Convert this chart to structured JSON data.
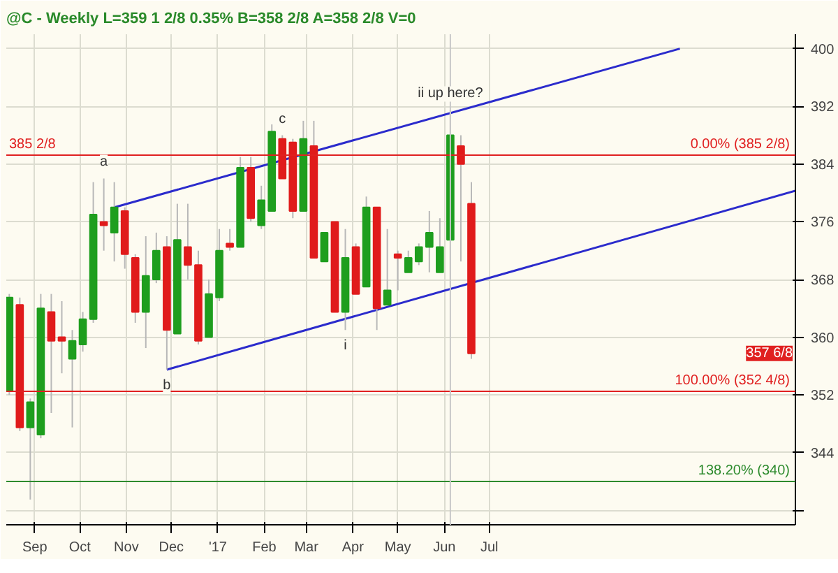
{
  "chart_data": {
    "type": "candlestick",
    "title": "@C - Weekly  L=359  1 2/8  0.35%  B=358 2/8  A=358 2/8  V=0",
    "x": [
      "2016-08-15",
      "2016-08-22",
      "2016-08-29",
      "2016-09-05",
      "2016-09-12",
      "2016-09-19",
      "2016-09-26",
      "2016-10-03",
      "2016-10-10",
      "2016-10-17",
      "2016-10-24",
      "2016-10-31",
      "2016-11-07",
      "2016-11-14",
      "2016-11-21",
      "2016-11-28",
      "2016-12-05",
      "2016-12-12",
      "2016-12-19",
      "2016-12-26",
      "2017-01-02",
      "2017-01-09",
      "2017-01-16",
      "2017-01-23",
      "2017-01-30",
      "2017-02-06",
      "2017-02-13",
      "2017-02-20",
      "2017-02-27",
      "2017-03-06",
      "2017-03-13",
      "2017-03-20",
      "2017-03-27",
      "2017-04-03",
      "2017-04-10",
      "2017-04-17",
      "2017-04-24",
      "2017-05-01",
      "2017-05-08",
      "2017-05-15",
      "2017-05-22",
      "2017-05-29",
      "2017-06-05",
      "2017-06-12",
      "2017-06-19"
    ],
    "ohlc": [
      [
        352.5,
        366,
        352,
        365.5
      ],
      [
        364.5,
        365.5,
        347,
        347.5
      ],
      [
        347.5,
        351.5,
        337.5,
        351
      ],
      [
        346.5,
        366,
        346,
        364
      ],
      [
        363.5,
        366,
        349.5,
        359.5
      ],
      [
        360,
        365,
        355,
        359.5
      ],
      [
        357,
        361,
        347.5,
        359.5
      ],
      [
        359,
        363.5,
        358,
        362.5
      ],
      [
        362.5,
        381.5,
        362,
        377
      ],
      [
        376,
        382,
        372,
        375.5
      ],
      [
        374.5,
        381.5,
        370.5,
        378
      ],
      [
        377.5,
        378,
        369.5,
        371.5
      ],
      [
        371,
        371.5,
        362,
        363.5
      ],
      [
        363.5,
        374,
        358.5,
        368.5
      ],
      [
        368,
        374.5,
        367.5,
        372
      ],
      [
        372.5,
        374,
        355.5,
        361
      ],
      [
        360.5,
        378.5,
        360.5,
        373.5
      ],
      [
        372.5,
        378.5,
        368,
        370
      ],
      [
        370,
        372,
        359,
        359.5
      ],
      [
        360,
        368,
        360,
        366
      ],
      [
        365.5,
        375,
        365,
        372
      ],
      [
        373,
        375,
        372,
        372.5
      ],
      [
        372.5,
        385,
        372.5,
        383.5
      ],
      [
        383.5,
        385,
        376,
        376.5
      ],
      [
        375.5,
        381,
        375,
        379
      ],
      [
        377.5,
        389.5,
        377.5,
        388.5
      ],
      [
        387.5,
        388,
        382,
        382
      ],
      [
        387,
        387.5,
        376.5,
        377.5
      ],
      [
        377.5,
        390,
        377.5,
        387.5
      ],
      [
        386.5,
        390,
        371,
        371
      ],
      [
        370.5,
        374.5,
        370.5,
        374.5
      ],
      [
        376,
        376,
        363.5,
        363.5
      ],
      [
        363.5,
        375,
        361,
        371
      ],
      [
        372.5,
        373,
        366,
        366
      ],
      [
        367,
        379.5,
        367,
        378
      ],
      [
        378,
        378,
        361,
        364
      ],
      [
        364.5,
        375,
        364.5,
        366.5
      ],
      [
        371.5,
        372,
        366.5,
        371
      ],
      [
        369,
        372,
        369,
        371
      ],
      [
        370.5,
        373,
        370,
        372.5
      ],
      [
        372.5,
        377.5,
        369,
        374.5
      ],
      [
        369,
        376.5,
        369,
        372.5
      ],
      [
        373.5,
        391.5,
        367,
        388
      ],
      [
        386.5,
        388,
        370.5,
        384
      ],
      [
        378.5,
        381.5,
        357,
        357.75
      ]
    ],
    "colors": [
      "#1e9e1e",
      "#e01b1b",
      "#1e9e1e",
      "#1e9e1e",
      "#e01b1b",
      "#e01b1b",
      "#1e9e1e",
      "#1e9e1e",
      "#1e9e1e",
      "#e01b1b",
      "#1e9e1e",
      "#e01b1b",
      "#e01b1b",
      "#1e9e1e",
      "#1e9e1e",
      "#e01b1b",
      "#1e9e1e",
      "#e01b1b",
      "#e01b1b",
      "#1e9e1e",
      "#1e9e1e",
      "#e01b1b",
      "#1e9e1e",
      "#e01b1b",
      "#1e9e1e",
      "#1e9e1e",
      "#e01b1b",
      "#e01b1b",
      "#1e9e1e",
      "#e01b1b",
      "#1e9e1e",
      "#e01b1b",
      "#1e9e1e",
      "#e01b1b",
      "#1e9e1e",
      "#e01b1b",
      "#1e9e1e",
      "#e01b1b",
      "#1e9e1e",
      "#1e9e1e",
      "#1e9e1e",
      "#1e9e1e",
      "#1e9e1e",
      "#e01b1b",
      "#e01b1b"
    ],
    "series": [
      {
        "type": "line",
        "x": [
          "2016-10-24",
          "2017-11-05"
        ],
        "values": [
          378,
          400
        ],
        "color": "#2b2bcc"
      },
      {
        "type": "line",
        "x": [
          "2016-11-28",
          "2018-01-21"
        ],
        "values": [
          355.5,
          380.3
        ],
        "color": "#2b2bcc"
      }
    ],
    "xlim": [
      "2016-08-13",
      "2018-01-21"
    ],
    "ylim": [
      334,
      402
    ],
    "xticks": [
      {
        "value": "2016-09-01",
        "label": "Sep"
      },
      {
        "value": "2016-10-01",
        "label": "Oct"
      },
      {
        "value": "2016-11-01",
        "label": "Nov"
      },
      {
        "value": "2016-12-01",
        "label": "Dec"
      },
      {
        "value": "2017-01-01",
        "label": "'17"
      },
      {
        "value": "2017-02-01",
        "label": "Feb"
      },
      {
        "value": "2017-03-01",
        "label": "Mar"
      },
      {
        "value": "2017-04-01",
        "label": "Apr"
      },
      {
        "value": "2017-05-01",
        "label": "May"
      },
      {
        "value": "2017-06-01",
        "label": "Jun"
      },
      {
        "value": "2017-07-01",
        "label": "Jul"
      }
    ],
    "yticks": [
      {
        "value": 336,
        "label": null
      },
      344,
      352,
      360,
      368,
      376,
      384,
      392,
      400
    ],
    "grid": true,
    "ref_lines": [
      {
        "axis": "y",
        "value": 385.25,
        "label": "0.00% (385 2/8)",
        "color": "#e02020"
      },
      {
        "axis": "y",
        "value": 352.5,
        "label": "100.00% (352 4/8)",
        "color": "#e02020"
      },
      {
        "axis": "y",
        "value": 340,
        "label": "138.20% (340)",
        "color": "#2e8b2e"
      },
      {
        "axis": "x",
        "value": "2017-06-05",
        "color": "#c8c8c8"
      }
    ],
    "annotations": [
      {
        "text": "385 2/8",
        "x": "2016-08-13",
        "y": 385.25
      },
      "357 6/8",
      {
        "text": "a",
        "x": "2016-10-17",
        "y": 382
      },
      {
        "text": "b",
        "x": "2016-11-28",
        "y": 355.5
      },
      {
        "text": "c",
        "x": "2017-02-13",
        "y": 388
      },
      {
        "text": "i",
        "x": "2017-03-27",
        "y": 361
      },
      {
        "text": "ii up here?",
        "x": "2017-06-05",
        "y": 391.5
      }
    ]
  }
}
